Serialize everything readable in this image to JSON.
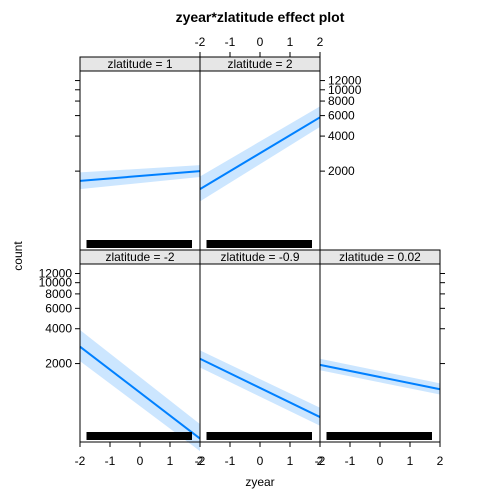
{
  "chart_data": {
    "type": "line",
    "title": "zyear*zlatitude effect plot",
    "xlabel": "zyear",
    "ylabel": "count",
    "x_ticks": [
      -2,
      -1,
      0,
      1,
      2
    ],
    "x_tick_labels": [
      "-2",
      "-1",
      "0",
      "1",
      "2"
    ],
    "xlim": [
      -2,
      2
    ],
    "y_scale": "log",
    "y_ticks": [
      2000,
      4000,
      6000,
      8000,
      10000,
      12000
    ],
    "y_tick_labels": [
      "2000",
      "4000",
      "6000",
      "8000",
      "10000",
      "12000"
    ],
    "ylim": [
      420,
      14500
    ],
    "line_color": "#0080ff",
    "band_color": "#cce6ff",
    "rug_x": [
      -1.75,
      -1.7,
      -1.65,
      -1.6,
      -1.55,
      -1.5,
      -1.45,
      -1.4,
      -1.35,
      -1.3,
      -1.25,
      -1.2,
      -1.15,
      -1.1,
      -1.05,
      -1.0,
      -0.95,
      -0.9,
      -0.85,
      -0.8,
      -0.75,
      -0.7,
      -0.65,
      -0.6,
      -0.55,
      -0.5,
      -0.45,
      -0.4,
      -0.35,
      -0.3,
      -0.25,
      -0.2,
      -0.15,
      -0.1,
      -0.05,
      0.0,
      0.05,
      0.1,
      0.15,
      0.2,
      0.25,
      0.3,
      0.35,
      0.4,
      0.45,
      0.5,
      0.55,
      0.6,
      0.65,
      0.7,
      0.75,
      0.8,
      0.85,
      0.9,
      0.95,
      1.0,
      1.05,
      1.1,
      1.15,
      1.2,
      1.25,
      1.3,
      1.35,
      1.4,
      1.45,
      1.5,
      1.55,
      1.6,
      1.65,
      1.7
    ],
    "panels": [
      {
        "label": "zlatitude = -2",
        "x": [
          -2,
          2
        ],
        "fit": [
          2800,
          450
        ],
        "lower": [
          2100,
          350
        ],
        "upper": [
          3900,
          600
        ]
      },
      {
        "label": "zlatitude = -0.9",
        "x": [
          -2,
          2
        ],
        "fit": [
          2200,
          690
        ],
        "lower": [
          1850,
          580
        ],
        "upper": [
          2600,
          830
        ]
      },
      {
        "label": "zlatitude = 0.02",
        "x": [
          -2,
          2
        ],
        "fit": [
          1950,
          1200
        ],
        "lower": [
          1750,
          1080
        ],
        "upper": [
          2200,
          1350
        ]
      },
      {
        "label": "zlatitude = 1",
        "x": [
          -2,
          2
        ],
        "fit": [
          1650,
          2000
        ],
        "lower": [
          1400,
          1780
        ],
        "upper": [
          1950,
          2250
        ]
      },
      {
        "label": "zlatitude = 2",
        "x": [
          -2,
          2
        ],
        "fit": [
          1400,
          5800
        ],
        "lower": [
          1100,
          4800
        ],
        "upper": [
          1800,
          7200
        ]
      }
    ]
  }
}
